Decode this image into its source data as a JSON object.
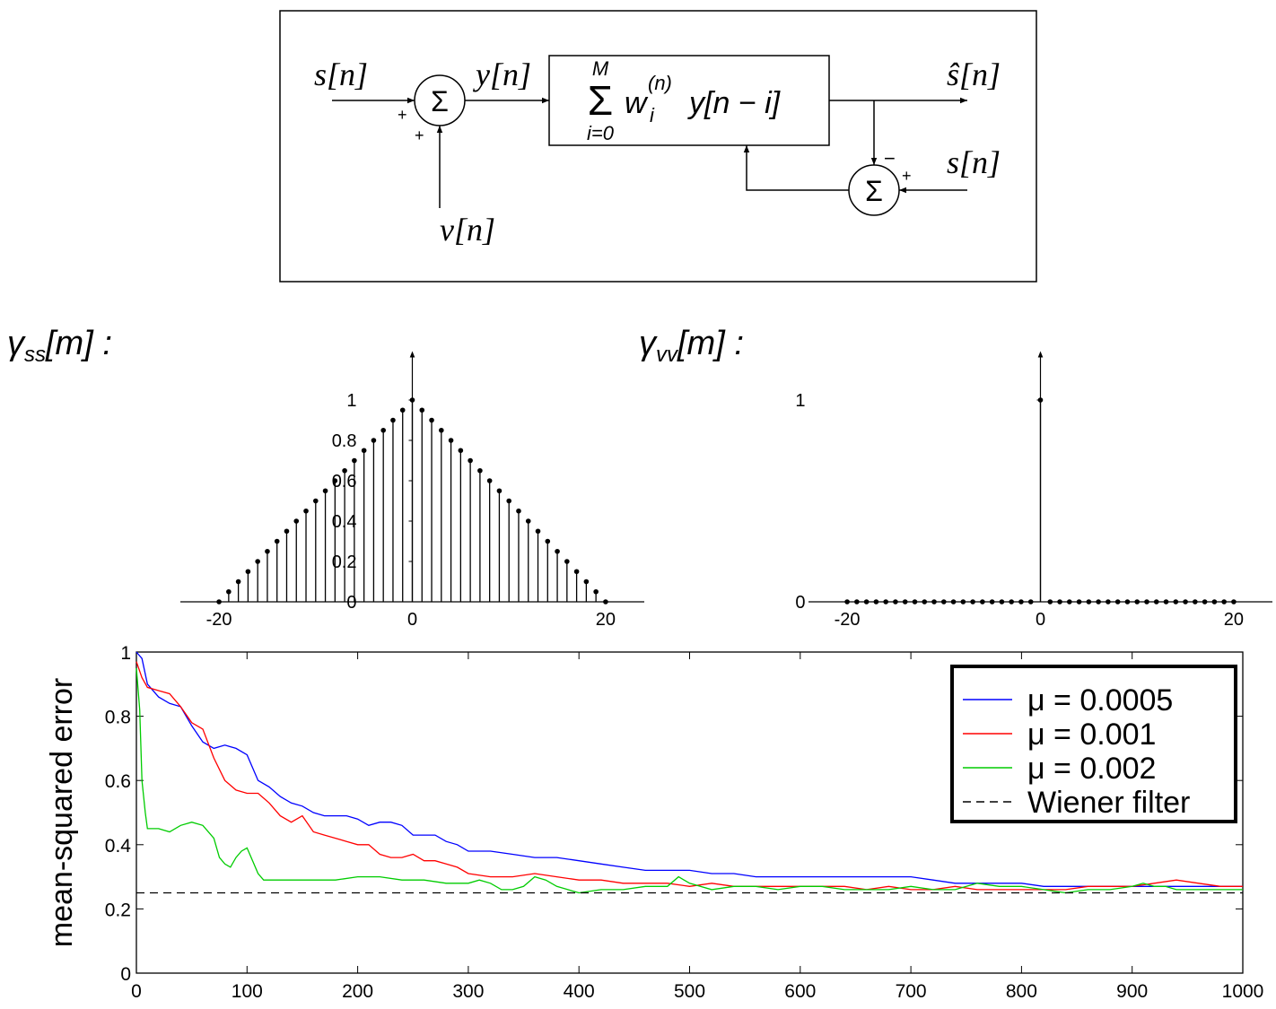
{
  "diagram": {
    "input_s": "s[n]",
    "noise_v": "v[n]",
    "sum_in": "y[n]",
    "sum_symbol": "Σ",
    "sign_plus_left": "+",
    "sign_plus_bottom": "+",
    "filter_sum_top": "M",
    "filter_sum_bottom": "i=0",
    "filter_w": "w",
    "filter_w_sup": "(n)",
    "filter_w_sub": "i",
    "filter_rest": "y[n − i]",
    "output": "ŝ[n]",
    "ref_s": "s[n]",
    "sign_minus": "−",
    "sign_plus_right": "+"
  },
  "chart_data": [
    {
      "type": "stem",
      "label": "γss[m] :",
      "label_main": "γ",
      "label_sub": "ss",
      "label_rest": "[m] :",
      "x": [
        -20,
        -19,
        -18,
        -17,
        -16,
        -15,
        -14,
        -13,
        -12,
        -11,
        -10,
        -9,
        -8,
        -7,
        -6,
        -5,
        -4,
        -3,
        -2,
        -1,
        0,
        1,
        2,
        3,
        4,
        5,
        6,
        7,
        8,
        9,
        10,
        11,
        12,
        13,
        14,
        15,
        16,
        17,
        18,
        19,
        20
      ],
      "y": [
        0,
        0.05,
        0.1,
        0.15,
        0.2,
        0.25,
        0.3,
        0.35,
        0.4,
        0.45,
        0.5,
        0.55,
        0.6,
        0.65,
        0.7,
        0.75,
        0.8,
        0.85,
        0.9,
        0.95,
        1,
        0.95,
        0.9,
        0.85,
        0.8,
        0.75,
        0.7,
        0.65,
        0.6,
        0.55,
        0.5,
        0.45,
        0.4,
        0.35,
        0.3,
        0.25,
        0.2,
        0.15,
        0.1,
        0.05,
        0
      ],
      "xticks": [
        -20,
        0,
        20
      ],
      "yticks": [
        0,
        0.2,
        0.4,
        0.6,
        0.8,
        1
      ],
      "xlim": [
        -24,
        24
      ],
      "ylim": [
        0,
        1.2
      ]
    },
    {
      "type": "stem",
      "label": "γvv[m] :",
      "label_main": "γ",
      "label_sub": "vv",
      "label_rest": "[m] :",
      "x": [
        -20,
        -19,
        -18,
        -17,
        -16,
        -15,
        -14,
        -13,
        -12,
        -11,
        -10,
        -9,
        -8,
        -7,
        -6,
        -5,
        -4,
        -3,
        -2,
        -1,
        0,
        1,
        2,
        3,
        4,
        5,
        6,
        7,
        8,
        9,
        10,
        11,
        12,
        13,
        14,
        15,
        16,
        17,
        18,
        19,
        20
      ],
      "y": [
        0,
        0,
        0,
        0,
        0,
        0,
        0,
        0,
        0,
        0,
        0,
        0,
        0,
        0,
        0,
        0,
        0,
        0,
        0,
        0,
        1,
        0,
        0,
        0,
        0,
        0,
        0,
        0,
        0,
        0,
        0,
        0,
        0,
        0,
        0,
        0,
        0,
        0,
        0,
        0,
        0
      ],
      "xticks": [
        -20,
        0,
        20
      ],
      "yticks": [
        0,
        1
      ],
      "xlim": [
        -24,
        24
      ],
      "ylim": [
        0,
        1.2
      ]
    },
    {
      "type": "line",
      "ylabel": "mean-squared error",
      "xlim": [
        0,
        1000
      ],
      "ylim": [
        0,
        1
      ],
      "xticks": [
        0,
        100,
        200,
        300,
        400,
        500,
        600,
        700,
        800,
        900,
        1000
      ],
      "yticks": [
        0,
        0.2,
        0.4,
        0.6,
        0.8,
        1
      ],
      "legend_position": "top-right",
      "series": [
        {
          "name": "μ = 0.0005",
          "color": "#0000ff",
          "dash": false,
          "x": [
            0,
            5,
            10,
            20,
            30,
            40,
            50,
            60,
            70,
            80,
            90,
            100,
            110,
            120,
            130,
            140,
            150,
            160,
            170,
            180,
            190,
            200,
            210,
            220,
            230,
            240,
            250,
            260,
            270,
            280,
            290,
            300,
            320,
            340,
            360,
            380,
            400,
            420,
            440,
            460,
            480,
            500,
            520,
            540,
            560,
            580,
            600,
            620,
            640,
            660,
            680,
            700,
            720,
            740,
            760,
            780,
            800,
            820,
            840,
            860,
            880,
            900,
            920,
            940,
            960,
            980,
            1000
          ],
          "y": [
            1.0,
            0.98,
            0.9,
            0.86,
            0.84,
            0.83,
            0.77,
            0.72,
            0.7,
            0.71,
            0.7,
            0.68,
            0.6,
            0.58,
            0.55,
            0.53,
            0.52,
            0.5,
            0.49,
            0.49,
            0.49,
            0.48,
            0.46,
            0.47,
            0.47,
            0.46,
            0.43,
            0.43,
            0.43,
            0.41,
            0.4,
            0.38,
            0.38,
            0.37,
            0.36,
            0.36,
            0.35,
            0.34,
            0.33,
            0.32,
            0.32,
            0.32,
            0.31,
            0.31,
            0.3,
            0.3,
            0.3,
            0.3,
            0.3,
            0.3,
            0.3,
            0.3,
            0.29,
            0.28,
            0.28,
            0.28,
            0.28,
            0.27,
            0.27,
            0.27,
            0.27,
            0.27,
            0.27,
            0.27,
            0.27,
            0.27,
            0.27
          ]
        },
        {
          "name": "μ = 0.001",
          "color": "#ff0000",
          "dash": false,
          "x": [
            0,
            5,
            10,
            20,
            30,
            40,
            50,
            60,
            70,
            80,
            90,
            100,
            110,
            120,
            130,
            140,
            150,
            160,
            170,
            180,
            190,
            200,
            210,
            220,
            230,
            240,
            250,
            260,
            270,
            280,
            290,
            300,
            320,
            340,
            360,
            380,
            400,
            420,
            440,
            460,
            480,
            500,
            520,
            540,
            560,
            580,
            600,
            620,
            640,
            660,
            680,
            700,
            720,
            740,
            760,
            780,
            800,
            820,
            840,
            860,
            880,
            900,
            920,
            940,
            960,
            980,
            1000
          ],
          "y": [
            0.97,
            0.92,
            0.89,
            0.88,
            0.87,
            0.83,
            0.78,
            0.76,
            0.67,
            0.6,
            0.57,
            0.56,
            0.56,
            0.53,
            0.49,
            0.47,
            0.49,
            0.44,
            0.43,
            0.42,
            0.41,
            0.4,
            0.4,
            0.37,
            0.36,
            0.36,
            0.37,
            0.35,
            0.35,
            0.34,
            0.33,
            0.31,
            0.3,
            0.3,
            0.31,
            0.3,
            0.29,
            0.29,
            0.28,
            0.28,
            0.28,
            0.27,
            0.28,
            0.27,
            0.27,
            0.27,
            0.27,
            0.27,
            0.27,
            0.26,
            0.27,
            0.26,
            0.26,
            0.27,
            0.26,
            0.26,
            0.26,
            0.26,
            0.26,
            0.27,
            0.27,
            0.27,
            0.28,
            0.29,
            0.28,
            0.27,
            0.27
          ]
        },
        {
          "name": "μ = 0.002",
          "color": "#00cc00",
          "dash": false,
          "x": [
            0,
            3,
            5,
            8,
            10,
            15,
            20,
            30,
            40,
            50,
            60,
            70,
            75,
            80,
            85,
            90,
            95,
            100,
            105,
            110,
            115,
            120,
            130,
            140,
            160,
            180,
            200,
            220,
            240,
            260,
            280,
            300,
            310,
            320,
            330,
            340,
            350,
            360,
            370,
            380,
            390,
            400,
            420,
            440,
            460,
            480,
            490,
            500,
            520,
            540,
            560,
            580,
            600,
            620,
            640,
            660,
            680,
            700,
            720,
            740,
            760,
            780,
            800,
            820,
            840,
            860,
            880,
            900,
            910,
            920,
            930,
            940,
            960,
            980,
            1000
          ],
          "y": [
            0.95,
            0.82,
            0.6,
            0.5,
            0.45,
            0.45,
            0.45,
            0.44,
            0.46,
            0.47,
            0.46,
            0.42,
            0.36,
            0.34,
            0.33,
            0.36,
            0.38,
            0.39,
            0.35,
            0.31,
            0.29,
            0.29,
            0.29,
            0.29,
            0.29,
            0.29,
            0.3,
            0.3,
            0.29,
            0.29,
            0.28,
            0.28,
            0.29,
            0.28,
            0.26,
            0.26,
            0.27,
            0.3,
            0.29,
            0.27,
            0.26,
            0.25,
            0.26,
            0.26,
            0.27,
            0.27,
            0.3,
            0.28,
            0.26,
            0.27,
            0.27,
            0.26,
            0.27,
            0.27,
            0.26,
            0.26,
            0.26,
            0.27,
            0.26,
            0.26,
            0.28,
            0.27,
            0.27,
            0.26,
            0.25,
            0.26,
            0.26,
            0.27,
            0.28,
            0.27,
            0.27,
            0.26,
            0.26,
            0.26,
            0.26
          ]
        },
        {
          "name": "Wiener filter",
          "color": "#000000",
          "dash": true,
          "x": [
            0,
            1000
          ],
          "y": [
            0.25,
            0.25
          ]
        }
      ]
    }
  ]
}
